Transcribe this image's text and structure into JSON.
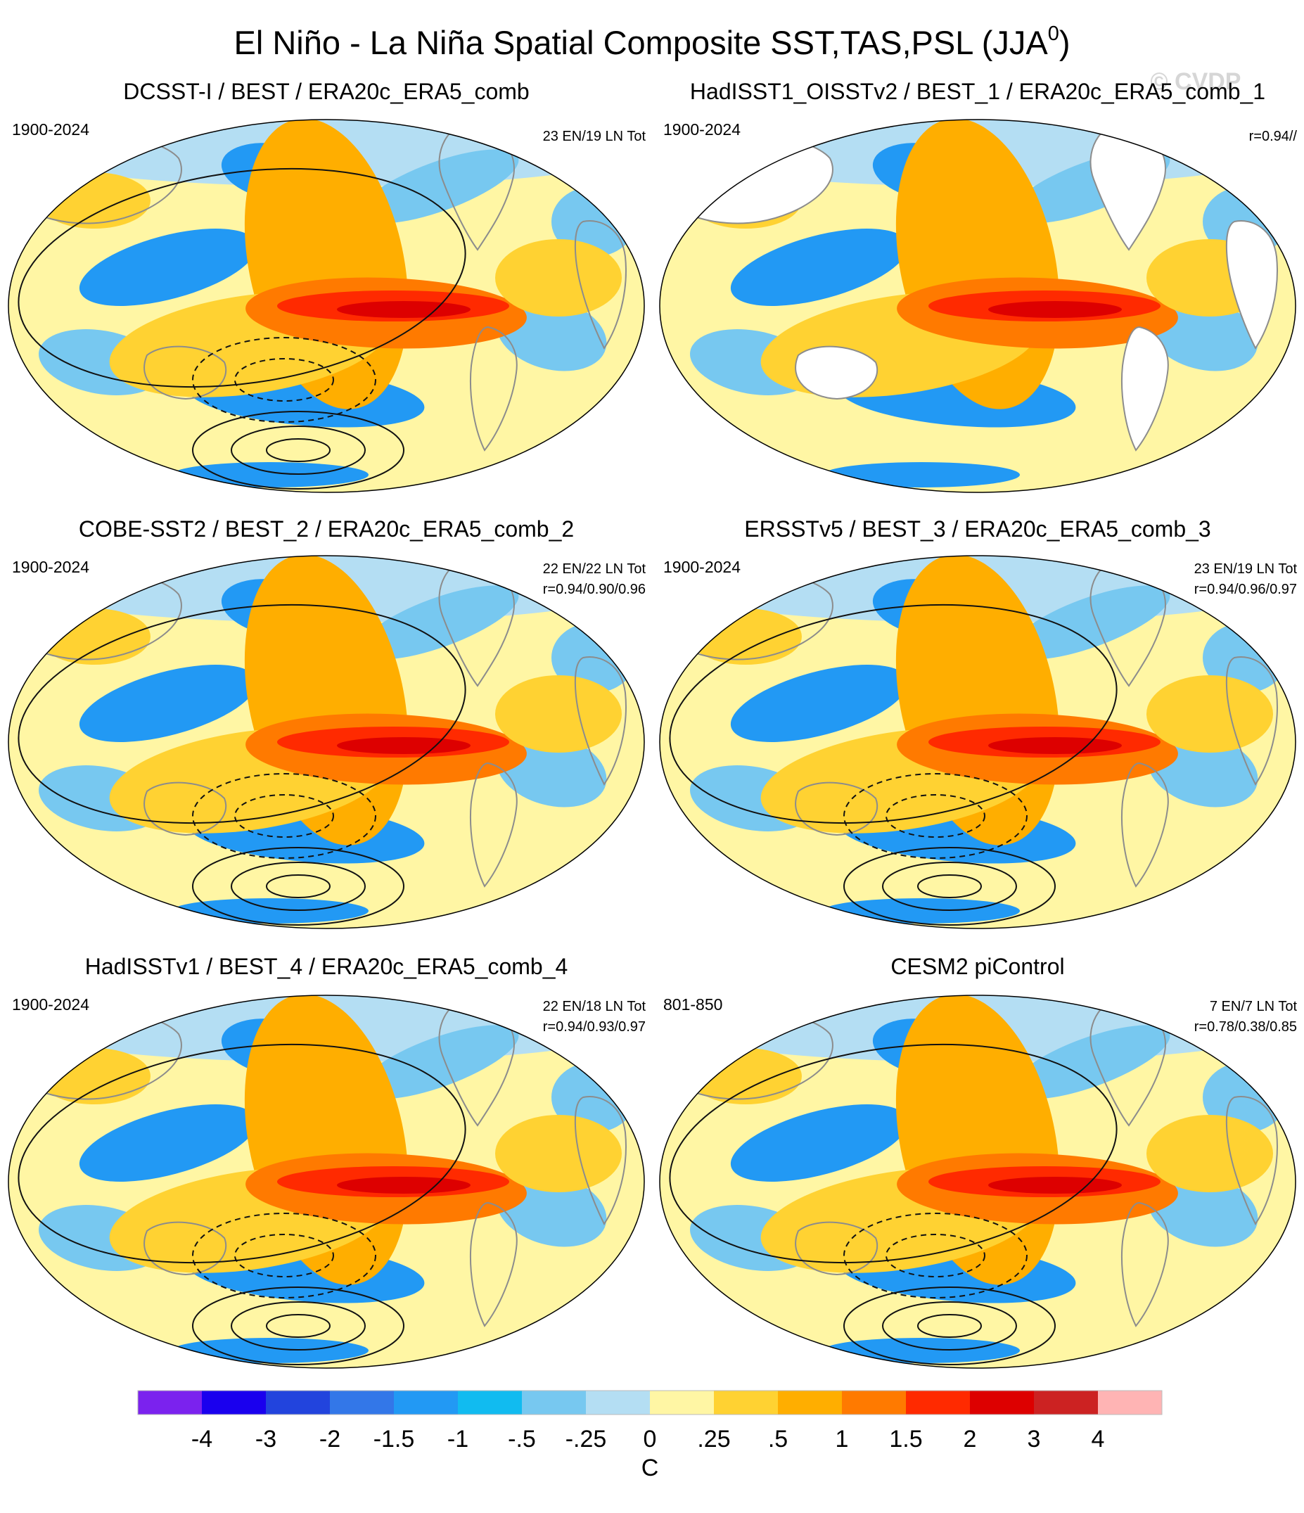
{
  "figure": {
    "title": "El Niño - La Niña Spatial Composite SST,TAS,PSL (JJA",
    "title_superscript": "0",
    "title_close": ")",
    "watermark": "© CVDP"
  },
  "chart_data": [
    {
      "type": "heatmap",
      "title": "DCSST-I / BEST / ERA20c_ERA5_comb",
      "period": "1900-2024",
      "count_text": "23 EN/19 LN Tot",
      "corr_text": "",
      "land_masked": false
    },
    {
      "type": "heatmap",
      "title": "HadISST1_OISSTv2 / BEST_1 / ERA20c_ERA5_comb_1",
      "period": "1900-2024",
      "count_text": "",
      "corr_text": "r=0.94//",
      "land_masked": true
    },
    {
      "type": "heatmap",
      "title": "COBE-SST2 / BEST_2 / ERA20c_ERA5_comb_2",
      "period": "1900-2024",
      "count_text": "22 EN/22 LN Tot",
      "corr_text": "r=0.94/0.90/0.96",
      "land_masked": false
    },
    {
      "type": "heatmap",
      "title": "ERSSTv5 / BEST_3 / ERA20c_ERA5_comb_3",
      "period": "1900-2024",
      "count_text": "23 EN/19 LN Tot",
      "corr_text": "r=0.94/0.96/0.97",
      "land_masked": false
    },
    {
      "type": "heatmap",
      "title": "HadISSTv1 / BEST_4 / ERA20c_ERA5_comb_4",
      "period": "1900-2024",
      "count_text": "22 EN/18 LN Tot",
      "corr_text": "r=0.94/0.93/0.97",
      "land_masked": false
    },
    {
      "type": "heatmap",
      "title": "CESM2 piControl",
      "period": "801-850",
      "count_text": "7 EN/7 LN Tot",
      "corr_text": "r=0.78/0.38/0.85",
      "land_masked": false
    }
  ],
  "colorbar": {
    "unit": "C",
    "labels": [
      "-4",
      "-3",
      "-2",
      "-1.5",
      "-1",
      "-.5",
      "-.25",
      "0",
      ".25",
      ".5",
      "1",
      "1.5",
      "2",
      "3",
      "4"
    ],
    "colors": [
      "#7b22ee",
      "#1a00ee",
      "#2244dd",
      "#3377e8",
      "#2299f4",
      "#11bbf0",
      "#77c8f0",
      "#b4def3",
      "#fff6a4",
      "#ffd232",
      "#ffae00",
      "#ff7a00",
      "#ff2a00",
      "#dd0000",
      "#cc2222",
      "#ffb4b4"
    ]
  },
  "palette": {
    "background": "#ffffff",
    "frame": "#000000",
    "coast": "#8c8c8c"
  }
}
